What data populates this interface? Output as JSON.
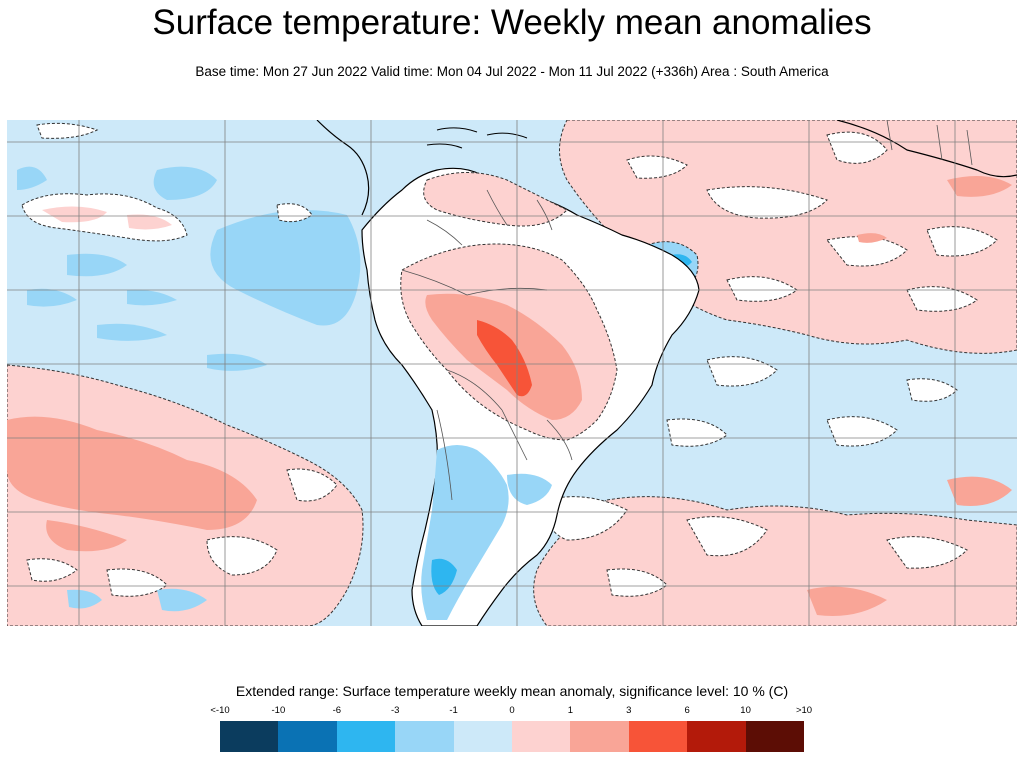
{
  "header": {
    "title": "Surface temperature: Weekly mean anomalies",
    "subtitle": "Base time: Mon 27 Jun 2022 Valid time: Mon 04 Jul 2022 - Mon 11 Jul 2022 (+336h) Area : South America"
  },
  "map": {
    "region": "South America",
    "background_color": "#cde9f9",
    "land_outline_color": "#000000",
    "grid_color": "#808080",
    "contour_style": "dashed"
  },
  "legend": {
    "title": "Extended range: Surface temperature weekly mean anomaly, significance level: 10 % (C)",
    "ticks": [
      "<-10",
      "-10",
      "-6",
      "-3",
      "-1",
      "0",
      "1",
      "3",
      "6",
      "10",
      ">10"
    ],
    "colors": [
      "#0b3c5e",
      "#0a72b4",
      "#2eb6f0",
      "#98d6f7",
      "#cde9f9",
      "#fdd2d0",
      "#f9a597",
      "#f75438",
      "#b31a0a",
      "#5c0d05"
    ]
  }
}
